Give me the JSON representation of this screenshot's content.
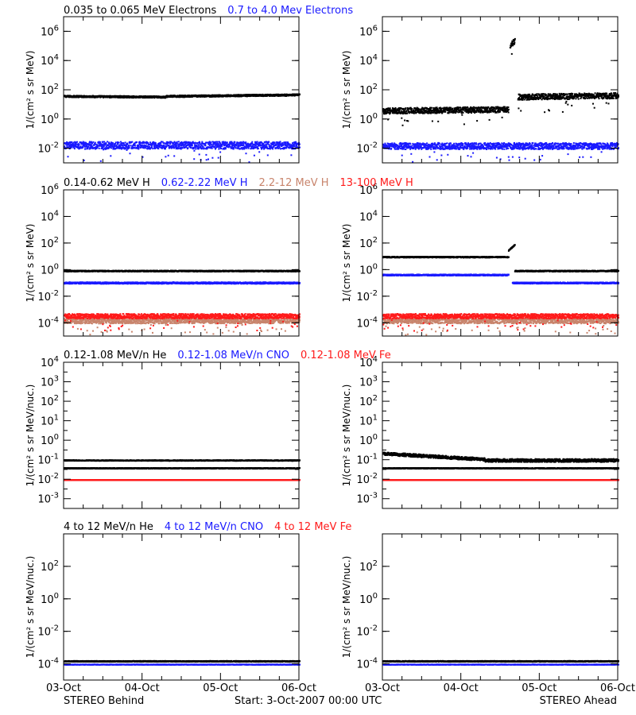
{
  "colors": {
    "black": "#000000",
    "blue": "#1a1aff",
    "tan": "#c8846c",
    "red": "#ff1a1a"
  },
  "rows": [
    {
      "legend": [
        {
          "text": "0.035 to 0.065 MeV Electrons",
          "color": "#000000"
        },
        {
          "text": "0.7 to 4.0 Mev Electrons",
          "color": "#1a1aff"
        }
      ],
      "ylabel": "1/(cm² s sr MeV)"
    },
    {
      "legend": [
        {
          "text": "0.14-0.62 MeV H",
          "color": "#000000"
        },
        {
          "text": "0.62-2.22 MeV H",
          "color": "#1a1aff"
        },
        {
          "text": "2.2-12 MeV H",
          "color": "#c8846c"
        },
        {
          "text": "13-100 MeV H",
          "color": "#ff1a1a"
        }
      ],
      "ylabel": "1/(cm² s sr MeV)"
    },
    {
      "legend": [
        {
          "text": "0.12-1.08 MeV/n He",
          "color": "#000000"
        },
        {
          "text": "0.12-1.08 MeV/n CNO",
          "color": "#1a1aff"
        },
        {
          "text": "0.12-1.08 MeV Fe",
          "color": "#ff1a1a"
        }
      ],
      "ylabel": "1/(cm² s sr MeV/nuc.)"
    },
    {
      "legend": [
        {
          "text": "4 to 12 MeV/n He",
          "color": "#000000"
        },
        {
          "text": "4 to 12 MeV/n CNO",
          "color": "#1a1aff"
        },
        {
          "text": "4 to 12 MeV Fe",
          "color": "#ff1a1a"
        }
      ],
      "ylabel": "1/(cm² s sr MeV/nuc.)"
    }
  ],
  "x_ticks": [
    "03-Oct",
    "04-Oct",
    "05-Oct",
    "06-Oct"
  ],
  "footer": {
    "left": "STEREO Behind",
    "center": "Start:  3-Oct-2007 00:00 UTC",
    "right": "STEREO Ahead"
  },
  "chart_data": [
    {
      "type": "scatter",
      "row": 0,
      "spacecraft": "STEREO Behind",
      "yscale": "log",
      "xlim": [
        0,
        3
      ],
      "ylim_exp": [
        -3,
        7
      ],
      "yticks": [
        {
          "base": "10",
          "exp": "-2",
          "v": -2
        },
        {
          "base": "10",
          "exp": "0",
          "v": 0
        },
        {
          "base": "10",
          "exp": "2",
          "v": 2
        },
        {
          "base": "10",
          "exp": "4",
          "v": 4
        },
        {
          "base": "10",
          "exp": "6",
          "v": 6
        }
      ],
      "series": [
        {
          "color": "#000000",
          "scatter": 0.06,
          "segments": [
            {
              "t0": 0,
              "t1": 1.3,
              "log_y0": 1.6,
              "log_y1": 1.55
            },
            {
              "t0": 1.3,
              "t1": 3,
              "log_y0": 1.6,
              "log_y1": 1.7
            }
          ]
        },
        {
          "color": "#1a1aff",
          "scatter": 0.25,
          "segments": [
            {
              "t0": 0,
              "t1": 3,
              "log_y0": -1.75,
              "log_y1": -1.75
            }
          ]
        }
      ]
    },
    {
      "type": "scatter",
      "row": 0,
      "spacecraft": "STEREO Ahead",
      "yscale": "log",
      "xlim": [
        0,
        3
      ],
      "ylim_exp": [
        -3,
        7
      ],
      "yticks": [
        {
          "base": "10",
          "exp": "-2",
          "v": -2
        },
        {
          "base": "10",
          "exp": "0",
          "v": 0
        },
        {
          "base": "10",
          "exp": "2",
          "v": 2
        },
        {
          "base": "10",
          "exp": "4",
          "v": 4
        },
        {
          "base": "10",
          "exp": "6",
          "v": 6
        }
      ],
      "series": [
        {
          "color": "#000000",
          "scatter": 0.2,
          "segments": [
            {
              "t0": 0,
              "t1": 1.6,
              "log_y0": 0.6,
              "log_y1": 0.7
            },
            {
              "t0": 1.62,
              "t1": 1.68,
              "log_y0": 5.1,
              "log_y1": 5.4
            },
            {
              "t0": 1.72,
              "t1": 3,
              "log_y0": 1.55,
              "log_y1": 1.65
            }
          ]
        },
        {
          "color": "#1a1aff",
          "scatter": 0.22,
          "segments": [
            {
              "t0": 0,
              "t1": 3,
              "log_y0": -1.8,
              "log_y1": -1.8
            }
          ]
        }
      ]
    },
    {
      "type": "scatter",
      "row": 1,
      "spacecraft": "STEREO Behind",
      "yscale": "log",
      "xlim": [
        0,
        3
      ],
      "ylim_exp": [
        -5,
        6
      ],
      "yticks": [
        {
          "base": "10",
          "exp": "-4",
          "v": -4
        },
        {
          "base": "10",
          "exp": "-2",
          "v": -2
        },
        {
          "base": "10",
          "exp": "0",
          "v": 0
        },
        {
          "base": "10",
          "exp": "2",
          "v": 2
        },
        {
          "base": "10",
          "exp": "4",
          "v": 4
        },
        {
          "base": "10",
          "exp": "6",
          "v": 6
        }
      ],
      "series": [
        {
          "color": "#000000",
          "scatter": 0.04,
          "segments": [
            {
              "t0": 0,
              "t1": 3,
              "log_y0": -0.05,
              "log_y1": -0.05
            }
          ]
        },
        {
          "color": "#1a1aff",
          "scatter": 0.06,
          "segments": [
            {
              "t0": 0,
              "t1": 3,
              "log_y0": -0.95,
              "log_y1": -0.95
            }
          ]
        },
        {
          "color": "#c8846c",
          "scatter": 0.2,
          "segments": [
            {
              "t0": 0,
              "t1": 3,
              "log_y0": -3.8,
              "log_y1": -3.8
            }
          ]
        },
        {
          "color": "#ff1a1a",
          "scatter": 0.18,
          "segments": [
            {
              "t0": 0,
              "t1": 3,
              "log_y0": -3.45,
              "log_y1": -3.45
            }
          ]
        }
      ]
    },
    {
      "type": "scatter",
      "row": 1,
      "spacecraft": "STEREO Ahead",
      "yscale": "log",
      "xlim": [
        0,
        3
      ],
      "ylim_exp": [
        -5,
        6
      ],
      "yticks": [
        {
          "base": "10",
          "exp": "-4",
          "v": -4
        },
        {
          "base": "10",
          "exp": "-2",
          "v": -2
        },
        {
          "base": "10",
          "exp": "0",
          "v": 0
        },
        {
          "base": "10",
          "exp": "2",
          "v": 2
        },
        {
          "base": "10",
          "exp": "4",
          "v": 4
        },
        {
          "base": "10",
          "exp": "6",
          "v": 6
        }
      ],
      "series": [
        {
          "color": "#000000",
          "scatter": 0.04,
          "segments": [
            {
              "t0": 0,
              "t1": 1.6,
              "log_y0": 1.0,
              "log_y1": 1.0
            },
            {
              "t0": 1.6,
              "t1": 1.68,
              "log_y0": 1.5,
              "log_y1": 1.9
            },
            {
              "t0": 1.68,
              "t1": 3,
              "log_y0": -0.05,
              "log_y1": -0.05
            }
          ]
        },
        {
          "color": "#1a1aff",
          "scatter": 0.05,
          "segments": [
            {
              "t0": 0,
              "t1": 1.6,
              "log_y0": -0.35,
              "log_y1": -0.35
            },
            {
              "t0": 1.65,
              "t1": 3,
              "log_y0": -0.95,
              "log_y1": -0.95
            }
          ]
        },
        {
          "color": "#c8846c",
          "scatter": 0.2,
          "segments": [
            {
              "t0": 0,
              "t1": 3,
              "log_y0": -3.8,
              "log_y1": -3.8
            }
          ]
        },
        {
          "color": "#ff1a1a",
          "scatter": 0.18,
          "segments": [
            {
              "t0": 0,
              "t1": 3,
              "log_y0": -3.45,
              "log_y1": -3.45
            }
          ]
        }
      ]
    },
    {
      "type": "scatter",
      "row": 2,
      "spacecraft": "STEREO Behind",
      "yscale": "log",
      "xlim": [
        0,
        3
      ],
      "ylim_exp": [
        -3.5,
        4
      ],
      "yticks": [
        {
          "base": "10",
          "exp": "-3",
          "v": -3
        },
        {
          "base": "10",
          "exp": "-2",
          "v": -2
        },
        {
          "base": "10",
          "exp": "-1",
          "v": -1
        },
        {
          "base": "10",
          "exp": "0",
          "v": 0
        },
        {
          "base": "10",
          "exp": "1",
          "v": 1
        },
        {
          "base": "10",
          "exp": "2",
          "v": 2
        },
        {
          "base": "10",
          "exp": "3",
          "v": 3
        },
        {
          "base": "10",
          "exp": "4",
          "v": 4
        }
      ],
      "series": [
        {
          "color": "#000000",
          "scatter": 0.02,
          "segments": [
            {
              "t0": 0,
              "t1": 3,
              "log_y0": -1.4,
              "log_y1": -1.4
            }
          ]
        },
        {
          "color": "#000000",
          "scatter": 0.02,
          "segments": [
            {
              "t0": 0,
              "t1": 3,
              "log_y0": -1.0,
              "log_y1": -1.0
            }
          ]
        },
        {
          "color": "#1a1aff",
          "scatter": 0.01,
          "segments": [
            {
              "t0": 0,
              "t1": 3,
              "log_y0": -2.0,
              "log_y1": -2.0
            }
          ]
        },
        {
          "color": "#ff1a1a",
          "scatter": 0.01,
          "segments": [
            {
              "t0": 0,
              "t1": 3,
              "log_y0": -2.0,
              "log_y1": -2.0
            }
          ]
        }
      ]
    },
    {
      "type": "scatter",
      "row": 2,
      "spacecraft": "STEREO Ahead",
      "yscale": "log",
      "xlim": [
        0,
        3
      ],
      "ylim_exp": [
        -3.5,
        4
      ],
      "yticks": [
        {
          "base": "10",
          "exp": "-3",
          "v": -3
        },
        {
          "base": "10",
          "exp": "-2",
          "v": -2
        },
        {
          "base": "10",
          "exp": "-1",
          "v": -1
        },
        {
          "base": "10",
          "exp": "0",
          "v": 0
        },
        {
          "base": "10",
          "exp": "1",
          "v": 1
        },
        {
          "base": "10",
          "exp": "2",
          "v": 2
        },
        {
          "base": "10",
          "exp": "3",
          "v": 3
        },
        {
          "base": "10",
          "exp": "4",
          "v": 4
        }
      ],
      "series": [
        {
          "color": "#000000",
          "scatter": 0.02,
          "segments": [
            {
              "t0": 0,
              "t1": 3,
              "log_y0": -1.4,
              "log_y1": -1.4
            }
          ]
        },
        {
          "color": "#000000",
          "scatter": 0.08,
          "segments": [
            {
              "t0": 0,
              "t1": 1.3,
              "log_y0": -0.65,
              "log_y1": -0.95
            },
            {
              "t0": 1.3,
              "t1": 3,
              "log_y0": -1.0,
              "log_y1": -1.0
            }
          ]
        },
        {
          "color": "#1a1aff",
          "scatter": 0.01,
          "segments": [
            {
              "t0": 0,
              "t1": 3,
              "log_y0": -2.0,
              "log_y1": -2.0
            }
          ]
        },
        {
          "color": "#ff1a1a",
          "scatter": 0.01,
          "segments": [
            {
              "t0": 0,
              "t1": 3,
              "log_y0": -2.0,
              "log_y1": -2.0
            }
          ]
        }
      ]
    },
    {
      "type": "scatter",
      "row": 3,
      "spacecraft": "STEREO Behind",
      "yscale": "log",
      "xlim": [
        0,
        3
      ],
      "ylim_exp": [
        -5,
        4
      ],
      "yticks": [
        {
          "base": "10",
          "exp": "-4",
          "v": -4
        },
        {
          "base": "10",
          "exp": "-2",
          "v": -2
        },
        {
          "base": "10",
          "exp": "0",
          "v": 0
        },
        {
          "base": "10",
          "exp": "2",
          "v": 2
        }
      ],
      "series": [
        {
          "color": "#1a1aff",
          "scatter": 0.01,
          "segments": [
            {
              "t0": 0,
              "t1": 3,
              "log_y0": -4.0,
              "log_y1": -4.0
            }
          ]
        },
        {
          "color": "#000000",
          "scatter": 0.03,
          "segments": [
            {
              "t0": 0,
              "t1": 3,
              "log_y0": -3.8,
              "log_y1": -3.8
            }
          ]
        }
      ]
    },
    {
      "type": "scatter",
      "row": 3,
      "spacecraft": "STEREO Ahead",
      "yscale": "log",
      "xlim": [
        0,
        3
      ],
      "ylim_exp": [
        -5,
        4
      ],
      "yticks": [
        {
          "base": "10",
          "exp": "-4",
          "v": -4
        },
        {
          "base": "10",
          "exp": "-2",
          "v": -2
        },
        {
          "base": "10",
          "exp": "0",
          "v": 0
        },
        {
          "base": "10",
          "exp": "2",
          "v": 2
        }
      ],
      "series": [
        {
          "color": "#1a1aff",
          "scatter": 0.01,
          "segments": [
            {
              "t0": 0,
              "t1": 3,
              "log_y0": -4.0,
              "log_y1": -4.0
            }
          ]
        },
        {
          "color": "#000000",
          "scatter": 0.03,
          "segments": [
            {
              "t0": 0,
              "t1": 3,
              "log_y0": -3.8,
              "log_y1": -3.8
            }
          ]
        }
      ]
    }
  ]
}
